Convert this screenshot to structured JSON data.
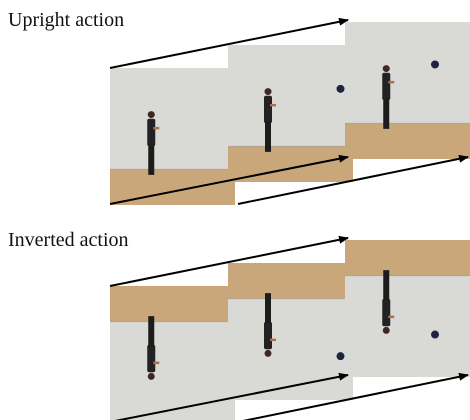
{
  "upright_label": "Upright action",
  "inverted_label": "Inverted action"
}
